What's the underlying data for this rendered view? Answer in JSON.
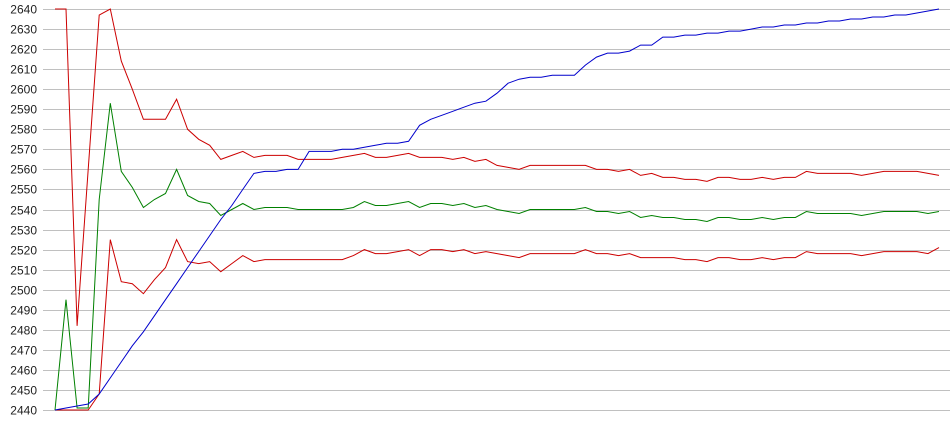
{
  "chart_data": {
    "type": "line",
    "title": "",
    "xlabel": "",
    "ylabel": "",
    "ylim": [
      2440,
      2640
    ],
    "y_ticks": [
      2440,
      2450,
      2460,
      2470,
      2480,
      2490,
      2500,
      2510,
      2520,
      2530,
      2540,
      2550,
      2560,
      2570,
      2580,
      2590,
      2600,
      2610,
      2620,
      2630,
      2640
    ],
    "grid": "horizontal",
    "legend": "none",
    "x_labels_shown": false,
    "series": [
      {
        "color": "#cc0000",
        "values": [
          2640,
          2640,
          2482,
          2560,
          2637,
          2640,
          2614,
          2600,
          2585,
          2585,
          2585,
          2595,
          2580,
          2575,
          2572,
          2565,
          2567,
          2569,
          2566,
          2567,
          2567,
          2567,
          2565,
          2565,
          2565,
          2565,
          2566,
          2567,
          2568,
          2566,
          2566,
          2567,
          2568,
          2566,
          2566,
          2566,
          2565,
          2566,
          2564,
          2565,
          2562,
          2561,
          2560,
          2562,
          2562,
          2562,
          2562,
          2562,
          2562,
          2560,
          2560,
          2559,
          2560,
          2557,
          2558,
          2556,
          2556,
          2555,
          2555,
          2554,
          2556,
          2556,
          2555,
          2555,
          2556,
          2555,
          2556,
          2556,
          2559,
          2558,
          2558,
          2558,
          2558,
          2557,
          2558,
          2559,
          2559,
          2559,
          2559,
          2558,
          2557
        ]
      },
      {
        "color": "#008000",
        "values": [
          2440,
          2495,
          2441,
          2441,
          2545,
          2593,
          2559,
          2551,
          2541,
          2545,
          2548,
          2560,
          2547,
          2544,
          2543,
          2537,
          2540,
          2543,
          2540,
          2541,
          2541,
          2541,
          2540,
          2540,
          2540,
          2540,
          2540,
          2541,
          2544,
          2542,
          2542,
          2543,
          2544,
          2541,
          2543,
          2543,
          2542,
          2543,
          2541,
          2542,
          2540,
          2539,
          2538,
          2540,
          2540,
          2540,
          2540,
          2540,
          2541,
          2539,
          2539,
          2538,
          2539,
          2536,
          2537,
          2536,
          2536,
          2535,
          2535,
          2534,
          2536,
          2536,
          2535,
          2535,
          2536,
          2535,
          2536,
          2536,
          2539,
          2538,
          2538,
          2538,
          2538,
          2537,
          2538,
          2539,
          2539,
          2539,
          2539,
          2538,
          2539
        ]
      },
      {
        "color": "#cc0000",
        "values": [
          2440,
          2440,
          2440,
          2440,
          2448,
          2525,
          2504,
          2503,
          2498,
          2505,
          2511,
          2525,
          2514,
          2513,
          2514,
          2509,
          2513,
          2517,
          2514,
          2515,
          2515,
          2515,
          2515,
          2515,
          2515,
          2515,
          2515,
          2517,
          2520,
          2518,
          2518,
          2519,
          2520,
          2517,
          2520,
          2520,
          2519,
          2520,
          2518,
          2519,
          2518,
          2517,
          2516,
          2518,
          2518,
          2518,
          2518,
          2518,
          2520,
          2518,
          2518,
          2517,
          2518,
          2516,
          2516,
          2516,
          2516,
          2515,
          2515,
          2514,
          2516,
          2516,
          2515,
          2515,
          2516,
          2515,
          2516,
          2516,
          2519,
          2518,
          2518,
          2518,
          2518,
          2517,
          2518,
          2519,
          2519,
          2519,
          2519,
          2518,
          2521
        ]
      },
      {
        "color": "#0000cc",
        "values": [
          2440,
          2441,
          2442,
          2443,
          2448,
          2456,
          2464,
          2472,
          2479,
          2487,
          2495,
          2503,
          2511,
          2519,
          2527,
          2535,
          2542,
          2550,
          2558,
          2559,
          2559,
          2560,
          2560,
          2569,
          2569,
          2569,
          2570,
          2570,
          2571,
          2572,
          2573,
          2573,
          2574,
          2582,
          2585,
          2587,
          2589,
          2591,
          2593,
          2594,
          2598,
          2603,
          2605,
          2606,
          2606,
          2607,
          2607,
          2607,
          2612,
          2616,
          2618,
          2618,
          2619,
          2622,
          2622,
          2626,
          2626,
          2627,
          2627,
          2628,
          2628,
          2629,
          2629,
          2630,
          2631,
          2631,
          2632,
          2632,
          2633,
          2633,
          2634,
          2634,
          2635,
          2635,
          2636,
          2636,
          2637,
          2637,
          2638,
          2639,
          2640
        ]
      }
    ]
  }
}
